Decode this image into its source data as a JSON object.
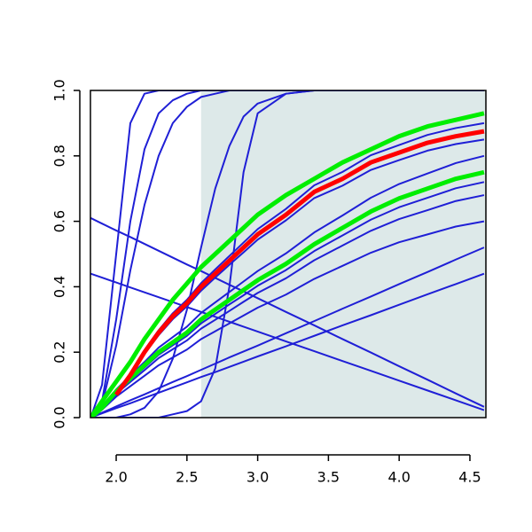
{
  "chart_data": {
    "type": "line",
    "x": [
      1.82,
      1.9,
      2.0,
      2.1,
      2.2,
      2.3,
      2.4,
      2.5,
      2.6,
      2.7,
      2.8,
      2.9,
      3.0,
      3.2,
      3.4,
      3.6,
      3.8,
      4.0,
      4.2,
      4.4,
      4.6
    ],
    "xlim": [
      1.818,
      4.613
    ],
    "ylim": [
      0,
      1
    ],
    "xticks": [
      {
        "value": 2,
        "label": "2.0"
      },
      {
        "value": 2.5,
        "label": "2.5"
      },
      {
        "value": 3,
        "label": "3.0"
      },
      {
        "value": 3.5,
        "label": "3.5"
      },
      {
        "value": 4,
        "label": "4.0"
      },
      {
        "value": 4.5,
        "label": "4.5"
      }
    ],
    "yticks": [
      {
        "value": 0,
        "label": "0.0"
      },
      {
        "value": 0.2,
        "label": "0.2"
      },
      {
        "value": 0.4,
        "label": "0.4"
      },
      {
        "value": 0.6,
        "label": "0.6"
      },
      {
        "value": 0.8,
        "label": "0.8"
      },
      {
        "value": 1,
        "label": "1.0"
      }
    ],
    "shaded_xlim": [
      2.6,
      4.613
    ],
    "shade_color": "#dde9e9",
    "series": [
      {
        "color": "#1f1fd6",
        "width": 2,
        "values": [
          0.61,
          0.593,
          0.572,
          0.552,
          0.531,
          0.51,
          0.489,
          0.468,
          0.448,
          0.427,
          0.406,
          0.386,
          0.365,
          0.323,
          0.282,
          0.24,
          0.199,
          0.157,
          0.116,
          0.074,
          0.033
        ]
      },
      {
        "color": "#1f1fd6",
        "width": 2,
        "values": [
          0.44,
          0.428,
          0.413,
          0.398,
          0.383,
          0.368,
          0.353,
          0.338,
          0.323,
          0.308,
          0.293,
          0.278,
          0.263,
          0.233,
          0.203,
          0.173,
          0.143,
          0.113,
          0.083,
          0.053,
          0.023
        ]
      },
      {
        "color": "#1f1fd6",
        "width": 2,
        "values": [
          0,
          0.1,
          0.5,
          0.9,
          0.99,
          1,
          1,
          1,
          1,
          1,
          1,
          1,
          1,
          1,
          1,
          1,
          1,
          1,
          1,
          1,
          1
        ]
      },
      {
        "color": "#1f1fd6",
        "width": 2,
        "values": [
          0,
          0.05,
          0.3,
          0.6,
          0.82,
          0.93,
          0.97,
          0.99,
          1,
          1,
          1,
          1,
          1,
          1,
          1,
          1,
          1,
          1,
          1,
          1,
          1
        ]
      },
      {
        "color": "#1f1fd6",
        "width": 2,
        "values": [
          0,
          0.04,
          0.22,
          0.45,
          0.65,
          0.8,
          0.9,
          0.95,
          0.98,
          0.99,
          1,
          1,
          1,
          1,
          1,
          1,
          1,
          1,
          1,
          1,
          1
        ]
      },
      {
        "color": "#1f1fd6",
        "width": 2,
        "values": [
          0,
          0,
          0,
          0.01,
          0.03,
          0.08,
          0.18,
          0.33,
          0.52,
          0.7,
          0.83,
          0.92,
          0.96,
          0.99,
          1,
          1,
          1,
          1,
          1,
          1,
          1
        ]
      },
      {
        "color": "#1f1fd6",
        "width": 2,
        "values": [
          0,
          0,
          0,
          0,
          0,
          0,
          0.01,
          0.02,
          0.05,
          0.15,
          0.4,
          0.75,
          0.93,
          0.99,
          1,
          1,
          1,
          1,
          1,
          1,
          1
        ]
      },
      {
        "color": "#1f1fd6",
        "width": 2,
        "values": [
          0,
          0.013,
          0.029,
          0.044,
          0.06,
          0.076,
          0.092,
          0.108,
          0.124,
          0.139,
          0.155,
          0.171,
          0.187,
          0.218,
          0.25,
          0.282,
          0.313,
          0.345,
          0.377,
          0.408,
          0.44
        ]
      },
      {
        "color": "#1f1fd6",
        "width": 2,
        "values": [
          0,
          0.015,
          0.034,
          0.053,
          0.071,
          0.09,
          0.109,
          0.127,
          0.146,
          0.165,
          0.184,
          0.202,
          0.22,
          0.258,
          0.295,
          0.333,
          0.37,
          0.408,
          0.445,
          0.483,
          0.52
        ]
      },
      {
        "color": "#1f1fd6",
        "width": 2,
        "values": [
          0,
          0.024,
          0.064,
          0.096,
          0.128,
          0.16,
          0.184,
          0.208,
          0.24,
          0.264,
          0.288,
          0.312,
          0.336,
          0.376,
          0.424,
          0.464,
          0.504,
          0.536,
          0.56,
          0.584,
          0.6
        ]
      },
      {
        "color": "#1f1fd6",
        "width": 2,
        "values": [
          0,
          0.027,
          0.073,
          0.109,
          0.145,
          0.182,
          0.209,
          0.236,
          0.272,
          0.299,
          0.326,
          0.354,
          0.381,
          0.426,
          0.481,
          0.526,
          0.571,
          0.607,
          0.634,
          0.662,
          0.68
        ]
      },
      {
        "color": "#1f1fd6",
        "width": 2,
        "values": [
          0,
          0.029,
          0.077,
          0.115,
          0.153,
          0.192,
          0.221,
          0.25,
          0.288,
          0.317,
          0.346,
          0.374,
          0.403,
          0.451,
          0.509,
          0.557,
          0.605,
          0.643,
          0.672,
          0.701,
          0.72
        ]
      },
      {
        "color": "#1f1fd6",
        "width": 2,
        "values": [
          0,
          0.032,
          0.086,
          0.128,
          0.17,
          0.214,
          0.246,
          0.278,
          0.32,
          0.352,
          0.384,
          0.416,
          0.448,
          0.502,
          0.566,
          0.618,
          0.672,
          0.714,
          0.746,
          0.778,
          0.8
        ]
      },
      {
        "color": "#1f1fd6",
        "width": 2,
        "values": [
          0,
          0.034,
          0.068,
          0.127,
          0.195,
          0.252,
          0.301,
          0.34,
          0.388,
          0.428,
          0.467,
          0.505,
          0.544,
          0.603,
          0.671,
          0.709,
          0.757,
          0.787,
          0.816,
          0.836,
          0.85
        ]
      },
      {
        "color": "#1f1fd6",
        "width": 2,
        "values": [
          0,
          0.036,
          0.072,
          0.134,
          0.206,
          0.267,
          0.319,
          0.36,
          0.411,
          0.453,
          0.494,
          0.535,
          0.576,
          0.638,
          0.71,
          0.751,
          0.802,
          0.833,
          0.864,
          0.885,
          0.9
        ]
      },
      {
        "color": "#00ee00",
        "width": 5,
        "values": [
          0,
          0.05,
          0.11,
          0.17,
          0.24,
          0.3,
          0.36,
          0.41,
          0.46,
          0.5,
          0.54,
          0.58,
          0.62,
          0.68,
          0.73,
          0.78,
          0.82,
          0.86,
          0.89,
          0.91,
          0.93
        ]
      },
      {
        "color": "#00ee00",
        "width": 5,
        "values": [
          0,
          0.03,
          0.08,
          0.12,
          0.16,
          0.2,
          0.23,
          0.26,
          0.3,
          0.33,
          0.36,
          0.39,
          0.42,
          0.47,
          0.53,
          0.58,
          0.63,
          0.67,
          0.7,
          0.73,
          0.75
        ]
      },
      {
        "color": "#ff0000",
        "width": 5,
        "values": [
          null,
          null,
          0.07,
          0.13,
          0.2,
          0.26,
          0.31,
          0.35,
          0.4,
          0.44,
          0.48,
          0.52,
          0.56,
          0.62,
          0.69,
          0.73,
          0.78,
          0.81,
          0.84,
          0.86,
          0.875
        ]
      }
    ]
  }
}
